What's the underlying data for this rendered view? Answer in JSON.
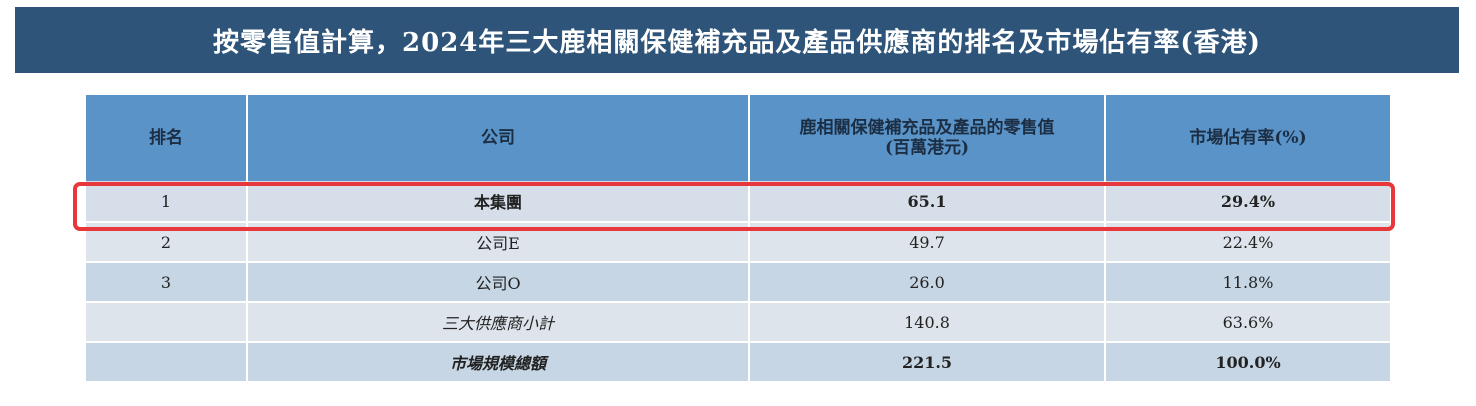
{
  "title": "按零售值計算，2024年三大鹿相關保健補充品及產品供應商的排名及市場佔有率(香港)",
  "chart_data": {
    "type": "table",
    "columns": [
      "排名",
      "公司",
      "鹿相關保健補充品及產品的零售值",
      "市場佔有率(%)"
    ],
    "column_subtitles": {
      "retail": "(百萬港元)"
    },
    "rows": [
      {
        "rank": "1",
        "company": "本集團",
        "retail": "65.1",
        "share": "29.4%"
      },
      {
        "rank": "2",
        "company": "公司E",
        "retail": "49.7",
        "share": "22.4%"
      },
      {
        "rank": "3",
        "company": "公司O",
        "retail": "26.0",
        "share": "11.8%"
      },
      {
        "rank": "",
        "company": "三大供應商小計",
        "retail": "140.8",
        "share": "63.6%"
      },
      {
        "rank": "",
        "company": "市場規模總額",
        "retail": "221.5",
        "share": "100.0%"
      }
    ],
    "highlight_color": "#e8363d",
    "header_color": "#5a93c7",
    "banner_color": "#2e5479"
  }
}
